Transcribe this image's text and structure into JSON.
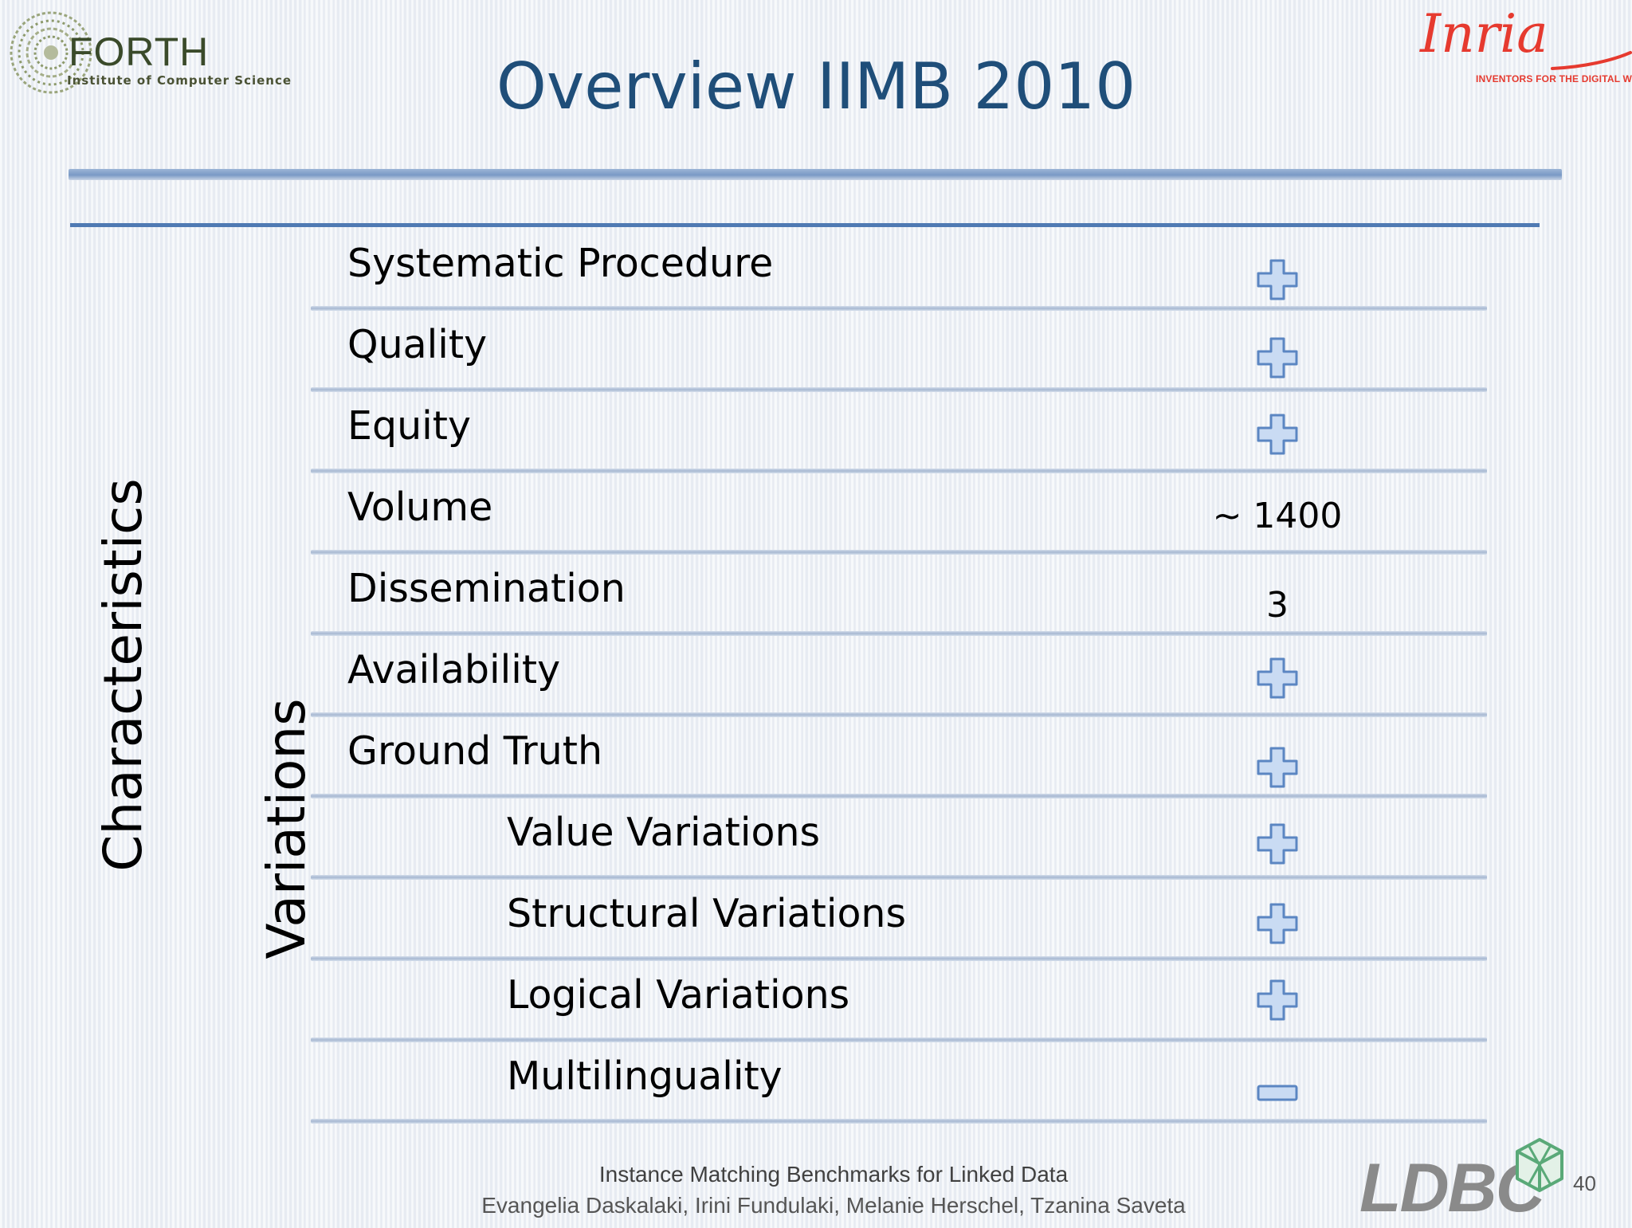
{
  "logos": {
    "forth": {
      "name": "FORTH",
      "subtitle": "Institute of Computer Science"
    },
    "inria": {
      "name": "Inria",
      "tagline": "INVENTORS FOR THE DIGITAL WORLD"
    },
    "ldbc": {
      "name": "LDBC"
    }
  },
  "slide": {
    "title": "Overview IIMB 2010",
    "page_number": "40"
  },
  "table": {
    "group_labels": {
      "characteristics": "Characteristics",
      "variations": "Variations"
    },
    "rows": [
      {
        "label": "Systematic Procedure",
        "value_type": "plus",
        "value": ""
      },
      {
        "label": "Quality",
        "value_type": "plus",
        "value": ""
      },
      {
        "label": "Equity",
        "value_type": "plus",
        "value": ""
      },
      {
        "label": "Volume",
        "value_type": "text",
        "value": "~ 1400"
      },
      {
        "label": "Dissemination",
        "value_type": "text",
        "value": "3"
      },
      {
        "label": "Availability",
        "value_type": "plus",
        "value": ""
      },
      {
        "label": "Ground Truth",
        "value_type": "plus",
        "value": ""
      },
      {
        "label": "Value Variations",
        "value_type": "plus",
        "value": ""
      },
      {
        "label": "Structural Variations",
        "value_type": "plus",
        "value": ""
      },
      {
        "label": "Logical Variations",
        "value_type": "plus",
        "value": ""
      },
      {
        "label": "Multilinguality",
        "value_type": "minus",
        "value": ""
      }
    ]
  },
  "footer": {
    "line1": "Instance Matching Benchmarks for Linked Data",
    "line2": "Evangelia Daskalaki, Irini Fundulaki, Melanie Herschel, Tzanina Saveta"
  },
  "colors": {
    "title": "#1f4e79",
    "rule": "#4f7ab3",
    "icon_fill": "#c9dbf3",
    "icon_stroke": "#5b86c2",
    "inria_red": "#e63a2f"
  }
}
